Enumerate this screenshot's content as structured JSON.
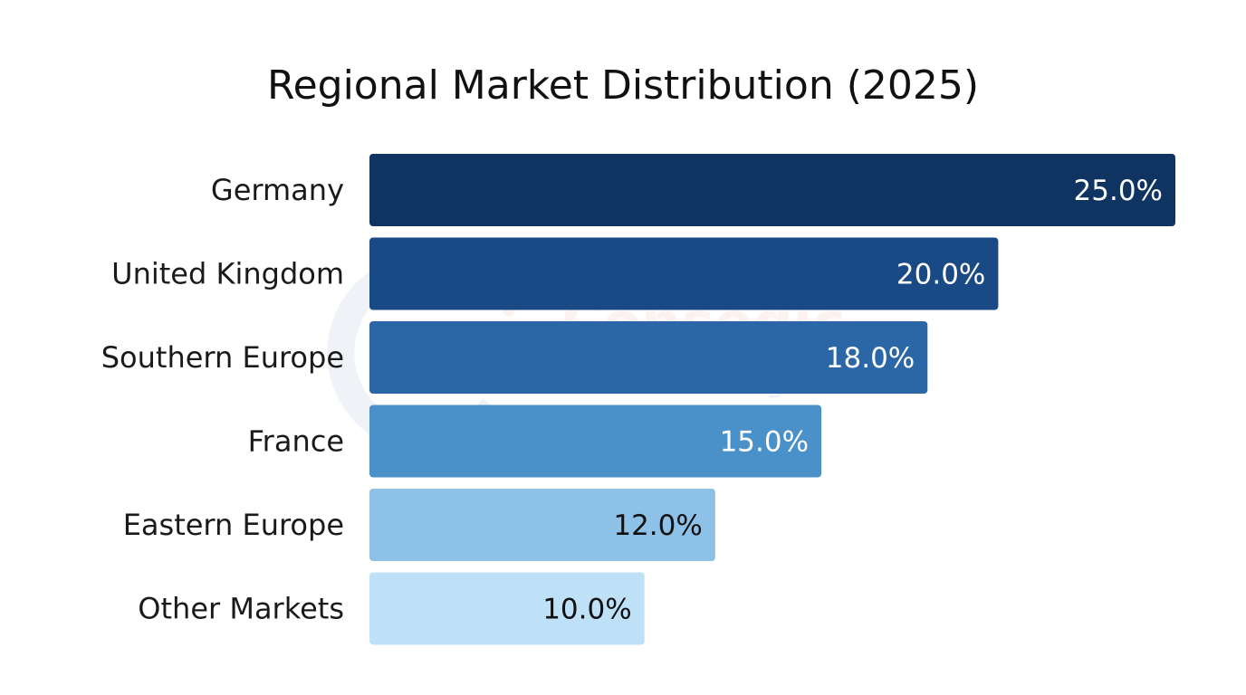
{
  "chart_data": {
    "type": "bar",
    "orientation": "horizontal",
    "title": "Regional Market Distribution (2025)",
    "xlabel": "",
    "ylabel": "",
    "categories": [
      "Germany",
      "United Kingdom",
      "Southern Europe",
      "France",
      "Eastern Europe",
      "Other Markets"
    ],
    "values": [
      25.0,
      20.0,
      18.0,
      15.0,
      12.0,
      10.0
    ],
    "value_labels": [
      "25.0%",
      "20.0%",
      "18.0%",
      "15.0%",
      "12.0%",
      "10.0%"
    ],
    "colors": [
      "#0f3462",
      "#1a4a86",
      "#2b66a6",
      "#4b91c9",
      "#8ec1e7",
      "#bee1f8"
    ],
    "label_colors": [
      "#ffffff",
      "#ffffff",
      "#ffffff",
      "#ffffff",
      "#111111",
      "#111111"
    ],
    "grid": false,
    "legend": "none"
  },
  "watermark": {
    "name": "Consegic",
    "tagline": "Business Intelligence"
  }
}
